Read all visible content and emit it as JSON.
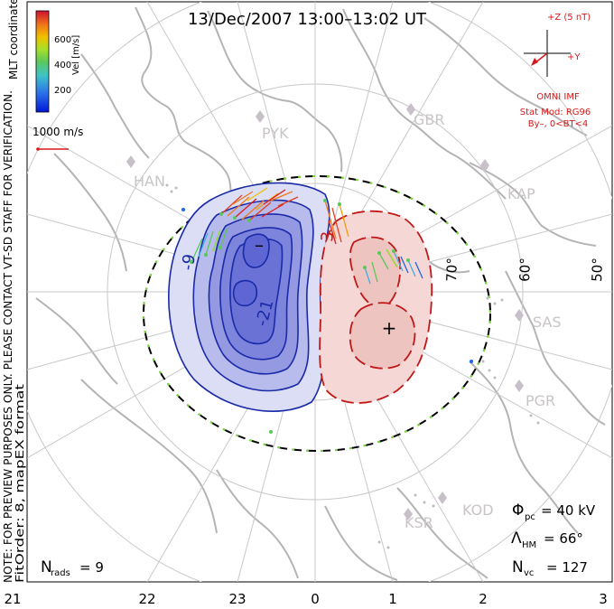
{
  "header": {
    "title": "13/Dec/2007 13:00–13:02 UT"
  },
  "left_margin": {
    "coords": "MLT coordinates",
    "note": "NOTE: FOR PREVIEW PURPOSES ONLY. PLEASE CONTACT VT-SD STAFF FOR VERIFICATION.",
    "fit": "FitOrder: 8, mapEX format"
  },
  "color_scale": {
    "label": "Vel [m/s]",
    "ticks": [
      "600",
      "400",
      "200"
    ],
    "colors": [
      "#0018d8",
      "#1f63e6",
      "#3cb0e8",
      "#58c858",
      "#8edc28",
      "#f0c000",
      "#f07818",
      "#e01818",
      "#c00030"
    ]
  },
  "velocity_scale": {
    "label": "1000 m/s",
    "color": "#d81818"
  },
  "imf": {
    "z_label": "+Z (5 nT)",
    "y_label": "+Y",
    "source": "OMNI IMF",
    "model": "Stat Mod: RG96",
    "condition": "By–, 0<BT<4",
    "color": "#d81818"
  },
  "stations": [
    "HAN",
    "PYK",
    "GBR",
    "KAP",
    "SAS",
    "PGR",
    "KOD",
    "KSR"
  ],
  "latitude_labels": [
    "70°",
    "60°",
    "50°"
  ],
  "mlt_labels": [
    "21",
    "22",
    "23",
    "0",
    "1",
    "2",
    "3"
  ],
  "contours": {
    "negative_labels": [
      "-9",
      "-21"
    ],
    "positive_label": "3",
    "negative_color": "#1a2aa8",
    "positive_color": "#c01818",
    "min_symbol": "–",
    "max_symbol": "+"
  },
  "stats": {
    "phi_symbol": "Φ",
    "phi_sub": "pc",
    "phi_value": "= 40 kV",
    "lambda_symbol": "Λ",
    "lambda_sub": "HM",
    "lambda_value": "= 66°",
    "nvc_symbol": "N",
    "nvc_sub": "vc",
    "nvc_value": "= 127",
    "nrads_symbol": "N",
    "nrads_sub": "rads",
    "nrads_value": "= 9"
  }
}
